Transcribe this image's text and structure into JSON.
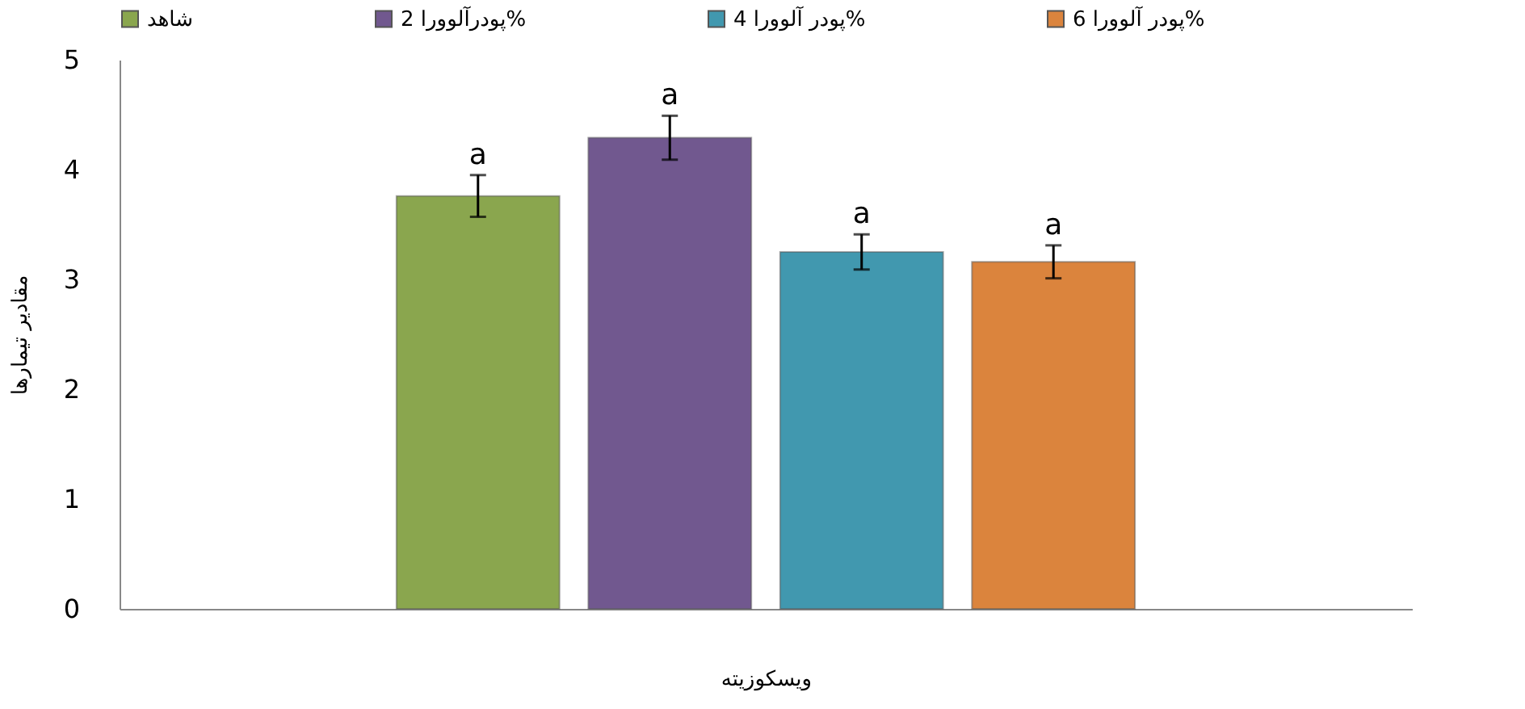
{
  "chart_data": {
    "type": "bar",
    "xlabel": "ویسکوزیته",
    "ylabel": "مقادیر تیمارها",
    "categories": [
      null
    ],
    "series": [
      {
        "name": "شاهد",
        "color": "#8aa64e",
        "values": [
          3.76
        ],
        "errors": [
          0.19
        ],
        "value_labels": [
          "a"
        ]
      },
      {
        "name": "پودرآلوورا 2%",
        "color": "#71588f",
        "values": [
          4.29
        ],
        "errors": [
          0.2
        ],
        "value_labels": [
          "a"
        ]
      },
      {
        "name": "پودر آلوورا 4%",
        "color": "#4198af",
        "values": [
          3.25
        ],
        "errors": [
          0.16
        ],
        "value_labels": [
          "a"
        ]
      },
      {
        "name": "پودر آلوورا 6%",
        "color": "#db843d",
        "values": [
          3.16
        ],
        "errors": [
          0.15
        ],
        "value_labels": [
          "a"
        ]
      }
    ],
    "ylim": [
      0,
      5
    ],
    "yticks": [
      0,
      1,
      2,
      3,
      4,
      5
    ],
    "grid": false,
    "legend": "top"
  }
}
